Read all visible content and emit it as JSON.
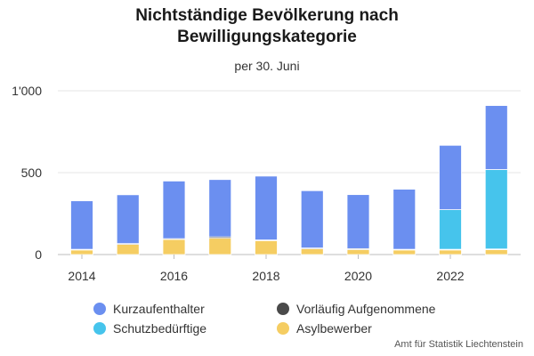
{
  "title_line1": "Nichtständige Bevölkerung nach",
  "title_line2": "Bewilligungskategorie",
  "subtitle": "per 30. Juni",
  "source": "Amt für Statistik Liechtenstein",
  "colors": {
    "Kurzaufenthalter": "#6b8ff0",
    "Vorläufig Aufgenommene": "#4a4a4a",
    "Schutzbedürftige": "#46c4ec",
    "Asylbewerber": "#f5cd62"
  },
  "legend": [
    {
      "label": "Kurzaufenthalter",
      "color": "#6b8ff0"
    },
    {
      "label": "Vorläufig Aufgenommene",
      "color": "#4a4a4a"
    },
    {
      "label": "Schutzbedürftige",
      "color": "#46c4ec"
    },
    {
      "label": "Asylbewerber",
      "color": "#f5cd62"
    }
  ],
  "chart_data": {
    "type": "bar",
    "stacked": true,
    "categories": [
      "2014",
      "2015",
      "2016",
      "2017",
      "2018",
      "2019",
      "2020",
      "2021",
      "2022",
      "2023"
    ],
    "series": [
      {
        "name": "Asylbewerber",
        "values": [
          28,
          62,
          92,
          100,
          85,
          35,
          30,
          28,
          28,
          30
        ]
      },
      {
        "name": "Vorläufig Aufgenommene",
        "values": [
          4,
          5,
          5,
          8,
          4,
          5,
          6,
          4,
          4,
          4
        ]
      },
      {
        "name": "Schutzbedürftige",
        "values": [
          0,
          0,
          0,
          0,
          0,
          0,
          0,
          0,
          242,
          485
        ]
      },
      {
        "name": "Kurzaufenthalter",
        "values": [
          296,
          298,
          352,
          350,
          390,
          350,
          330,
          367,
          393,
          391
        ]
      }
    ],
    "x_tick_labels": [
      "2014",
      "2016",
      "2018",
      "2020",
      "2022"
    ],
    "y_tick_labels": [
      "0",
      "500",
      "1'000"
    ],
    "y_ticks": [
      0,
      500,
      1000
    ],
    "ylim": [
      0,
      1000
    ],
    "grid": true,
    "legend_position": "bottom"
  }
}
